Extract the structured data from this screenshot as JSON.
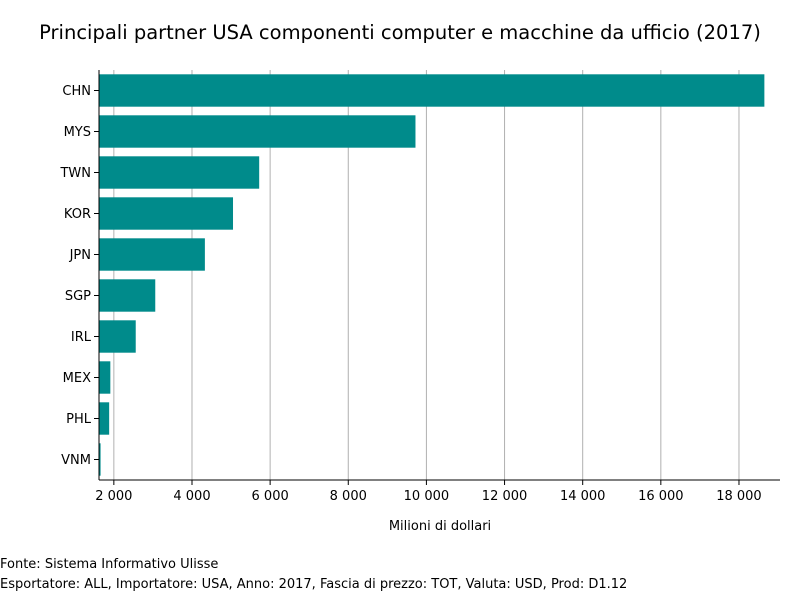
{
  "chart_data": {
    "type": "bar",
    "orientation": "horizontal",
    "title": "Principali partner USA componenti computer e macchine da ufficio (2017)",
    "xlabel": "Milioni di dollari",
    "ylabel": "",
    "categories": [
      "CHN",
      "MYS",
      "TWN",
      "KOR",
      "JPN",
      "SGP",
      "IRL",
      "MEX",
      "PHL",
      "VNM"
    ],
    "values": [
      18650,
      9720,
      5720,
      5050,
      4330,
      3060,
      2560,
      1910,
      1880,
      1660
    ],
    "xlim": [
      1620,
      19050
    ],
    "xticks": [
      2000,
      4000,
      6000,
      8000,
      10000,
      12000,
      14000,
      16000,
      18000
    ],
    "xtick_labels": [
      "2 000",
      "4 000",
      "6 000",
      "8 000",
      "10 000",
      "12 000",
      "14 000",
      "16 000",
      "18 000"
    ],
    "bar_color": "#008b8b",
    "grid": "vertical",
    "legend": "none"
  },
  "footnotes": {
    "source": "Fonte: Sistema Informativo Ulisse",
    "details": "Esportatore: ALL, Importatore: USA, Anno: 2017, Fascia di prezzo: TOT, Valuta: USD, Prod: D1.12"
  }
}
